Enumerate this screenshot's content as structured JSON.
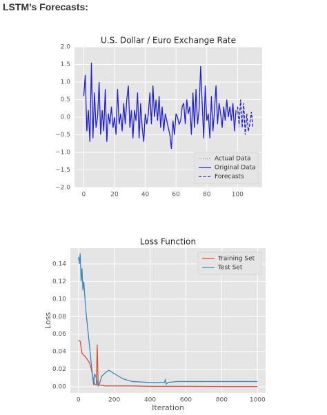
{
  "heading": "LSTM’s Forecasts:",
  "chart_data": [
    {
      "type": "line",
      "title": "U.S. Dollar / Euro Exchange Rate",
      "xlim": [
        -6,
        116
      ],
      "ylim": [
        -2,
        2
      ],
      "xticks": [
        0,
        20,
        40,
        60,
        80,
        100
      ],
      "yticks": [
        {
          "value": -2,
          "label": "−2.0"
        },
        {
          "value": -1.5,
          "label": "−1.5"
        },
        {
          "value": -1,
          "label": "−1.0"
        },
        {
          "value": -0.5,
          "label": "−0.5"
        },
        {
          "value": 0,
          "label": "0.0"
        },
        {
          "value": 0.5,
          "label": "0.5"
        },
        {
          "value": 1,
          "label": "1.0"
        },
        {
          "value": 1.5,
          "label": "1.5"
        },
        {
          "value": 2,
          "label": "2.0"
        }
      ],
      "grid": true,
      "legend": "lower right",
      "series": [
        {
          "name": "Actual Data",
          "color": "#888888",
          "dash": "dotted",
          "x": [
            100,
            101,
            102,
            103,
            104,
            105,
            106,
            107,
            108,
            109,
            110
          ],
          "values": [
            0.2,
            -0.3,
            0.45,
            -0.2,
            0.3,
            -0.45,
            0.0,
            -0.35,
            -0.1,
            0.1,
            -0.25
          ]
        },
        {
          "name": "Original Data",
          "color": "#1f1fe0",
          "dash": "solid",
          "x": [
            0,
            1,
            2,
            3,
            4,
            5,
            6,
            7,
            8,
            9,
            10,
            11,
            12,
            13,
            14,
            15,
            16,
            17,
            18,
            19,
            20,
            21,
            22,
            23,
            24,
            25,
            26,
            27,
            28,
            29,
            30,
            31,
            32,
            33,
            34,
            35,
            36,
            37,
            38,
            39,
            40,
            41,
            42,
            43,
            44,
            45,
            46,
            47,
            48,
            49,
            50,
            51,
            52,
            53,
            54,
            55,
            56,
            57,
            58,
            59,
            60,
            61,
            62,
            63,
            64,
            65,
            66,
            67,
            68,
            69,
            70,
            71,
            72,
            73,
            74,
            75,
            76,
            77,
            78,
            79,
            80,
            81,
            82,
            83,
            84,
            85,
            86,
            87,
            88,
            89,
            90,
            91,
            92,
            93,
            94,
            95,
            96,
            97,
            98,
            99
          ],
          "values": [
            0.6,
            1.2,
            -0.4,
            0.2,
            -0.7,
            1.55,
            -0.6,
            0.7,
            -0.3,
            0.0,
            1.0,
            -0.5,
            0.2,
            -0.4,
            0.8,
            -0.7,
            0.1,
            -0.2,
            0.3,
            -0.3,
            0.0,
            -0.5,
            0.8,
            -0.2,
            0.1,
            -0.4,
            0.4,
            -0.2,
            0.5,
            0.9,
            -0.3,
            0.2,
            -0.6,
            0.2,
            -0.1,
            0.7,
            -0.6,
            0.4,
            -0.3,
            -0.7,
            0.1,
            -0.2,
            0.1,
            0.7,
            -0.2,
            0.9,
            0.0,
            0.5,
            -0.1,
            0.6,
            -0.3,
            0.3,
            -0.4,
            0.1,
            -0.1,
            -0.3,
            -0.5,
            -0.9,
            -0.1,
            -0.5,
            0.1,
            0.0,
            -0.2,
            -0.1,
            0.3,
            0.4,
            -0.2,
            0.5,
            0.1,
            0.3,
            -0.5,
            0.7,
            -0.3,
            0.8,
            -0.2,
            0.2,
            1.45,
            0.4,
            -0.6,
            0.9,
            -0.1,
            0.1,
            -0.6,
            0.6,
            -0.4,
            0.2,
            0.9,
            -0.2,
            0.4,
            0.1,
            -0.3,
            0.3,
            -0.1,
            0.5,
            0.0,
            0.3,
            -0.1,
            0.4,
            -0.4,
            0.2
          ]
        },
        {
          "name": "Forecasts",
          "color": "#1f1fe0",
          "dash": "dashed",
          "x": [
            100,
            101,
            102,
            103,
            104,
            105,
            106,
            107,
            108,
            109,
            110
          ],
          "values": [
            0.3,
            -0.2,
            0.5,
            -0.3,
            0.4,
            -0.5,
            0.1,
            -0.4,
            -0.2,
            0.15,
            -0.3
          ]
        }
      ]
    },
    {
      "type": "line",
      "title": "Loss Function",
      "x_label": "Iteration",
      "y_label": "Loss",
      "xlim": [
        -45,
        1045
      ],
      "ylim": [
        -0.007,
        0.158
      ],
      "xticks": [
        0,
        200,
        400,
        600,
        800,
        1000
      ],
      "yticks": [
        {
          "value": 0,
          "label": "0.00"
        },
        {
          "value": 0.02,
          "label": "0.02"
        },
        {
          "value": 0.04,
          "label": "0.04"
        },
        {
          "value": 0.06,
          "label": "0.06"
        },
        {
          "value": 0.08,
          "label": "0.08"
        },
        {
          "value": 0.1,
          "label": "0.10"
        },
        {
          "value": 0.12,
          "label": "0.12"
        },
        {
          "value": 0.14,
          "label": "0.14"
        }
      ],
      "grid": true,
      "legend": "upper right",
      "series": [
        {
          "name": "Training Set",
          "color": "#e24a33",
          "dash": "solid",
          "x": [
            0,
            10,
            20,
            40,
            60,
            70,
            80,
            90,
            100,
            105,
            110,
            120,
            150,
            200,
            300,
            400,
            500,
            600,
            800,
            1000
          ],
          "values": [
            0.053,
            0.052,
            0.038,
            0.034,
            0.028,
            0.022,
            0.012,
            0.003,
            0.002,
            0.048,
            0.003,
            0.002,
            0.001,
            0.001,
            0.001,
            0.0005,
            0.0005,
            0.0005,
            0.0003,
            0.0003
          ]
        },
        {
          "name": "Test Set",
          "color": "#348abd",
          "dash": "solid",
          "x": [
            0,
            5,
            10,
            15,
            20,
            25,
            30,
            40,
            50,
            60,
            70,
            80,
            85,
            90,
            100,
            110,
            120,
            130,
            150,
            170,
            200,
            250,
            300,
            400,
            480,
            485,
            490,
            500,
            550,
            600,
            800,
            1000
          ],
          "values": [
            0.148,
            0.14,
            0.152,
            0.12,
            0.135,
            0.11,
            0.12,
            0.09,
            0.07,
            0.05,
            0.03,
            0.01,
            0.002,
            0.015,
            0.01,
            0.001,
            0.005,
            0.012,
            0.016,
            0.019,
            0.015,
            0.009,
            0.006,
            0.005,
            0.005,
            0.008,
            0.003,
            0.005,
            0.006,
            0.006,
            0.006,
            0.006
          ]
        }
      ]
    }
  ]
}
